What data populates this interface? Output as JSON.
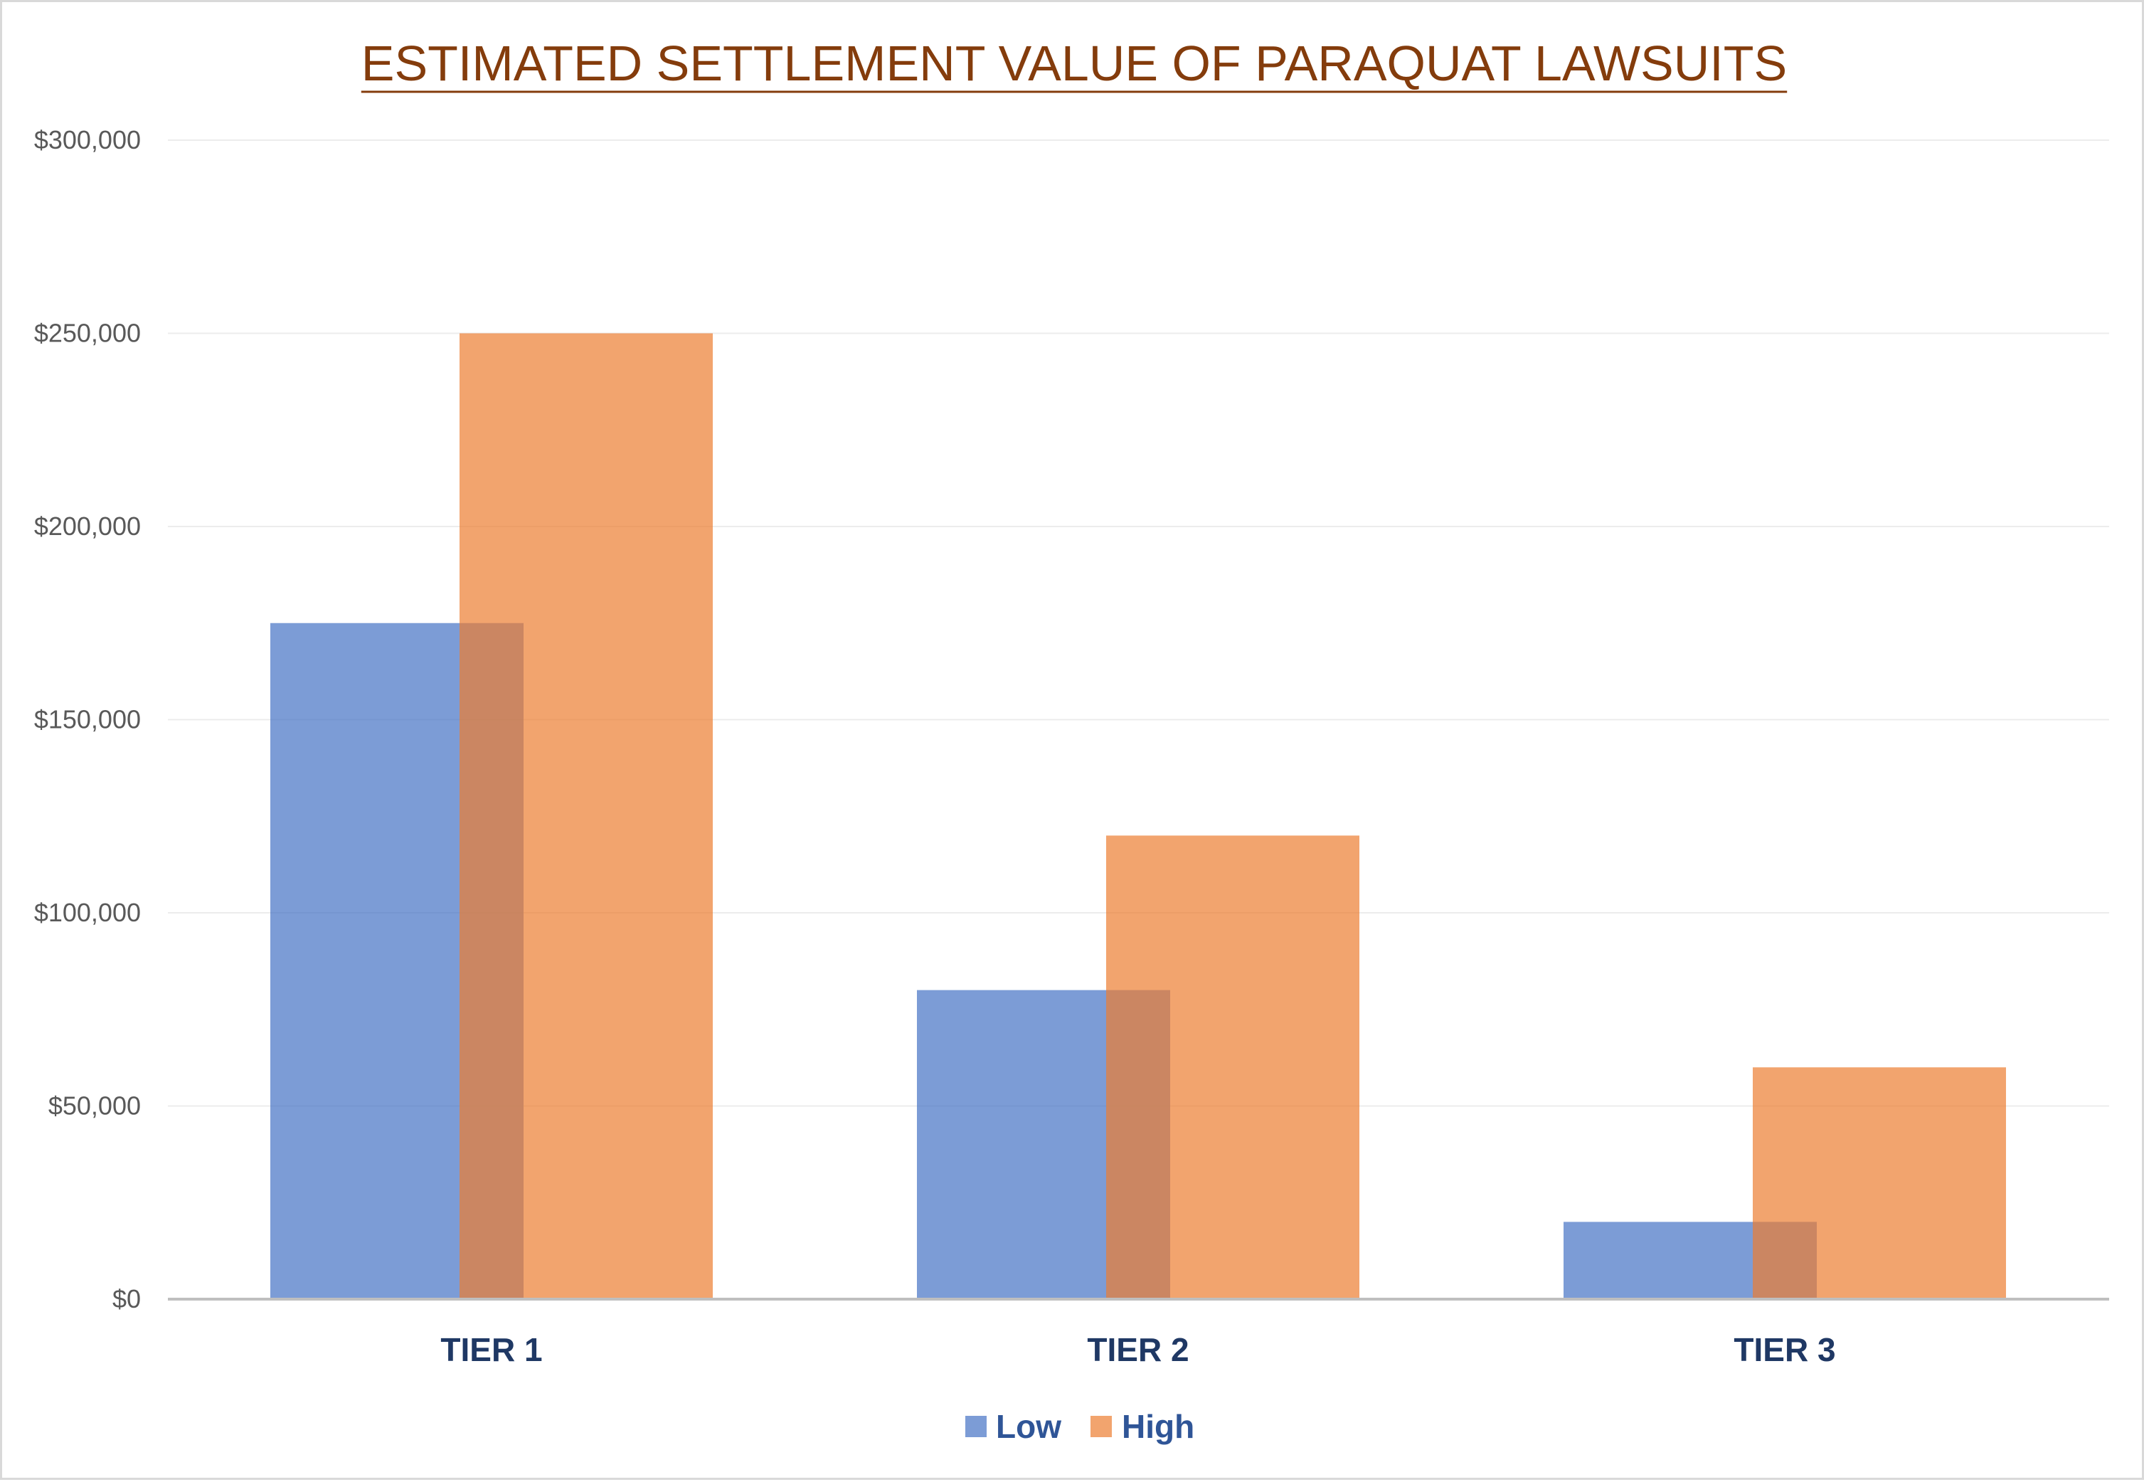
{
  "chart_data": {
    "type": "bar",
    "title": "ESTIMATED SETTLEMENT VALUE OF PARAQUAT LAWSUITS",
    "categories": [
      "TIER 1",
      "TIER 2",
      "TIER 3"
    ],
    "series": [
      {
        "name": "Low",
        "values": [
          175000,
          80000,
          20000
        ],
        "color": "#4472c4"
      },
      {
        "name": "High",
        "values": [
          250000,
          120000,
          60000
        ],
        "color": "#ed7d31"
      }
    ],
    "ylim": [
      0,
      300000
    ],
    "yticks": [
      0,
      50000,
      100000,
      150000,
      200000,
      250000,
      300000
    ],
    "ytick_labels": [
      "$0",
      "$50,000",
      "$100,000",
      "$150,000",
      "$200,000",
      "$250,000",
      "$300,000"
    ],
    "grid": true,
    "legend": "bottom",
    "bar_overlap": true,
    "colors": {
      "title": "#843c0c",
      "tick_label": "#595959",
      "category_label": "#1f3864",
      "legend_label": "#2f5597",
      "gridline": "#ececec",
      "axis": "#bfbfbf",
      "border": "#d9d9d9"
    }
  }
}
